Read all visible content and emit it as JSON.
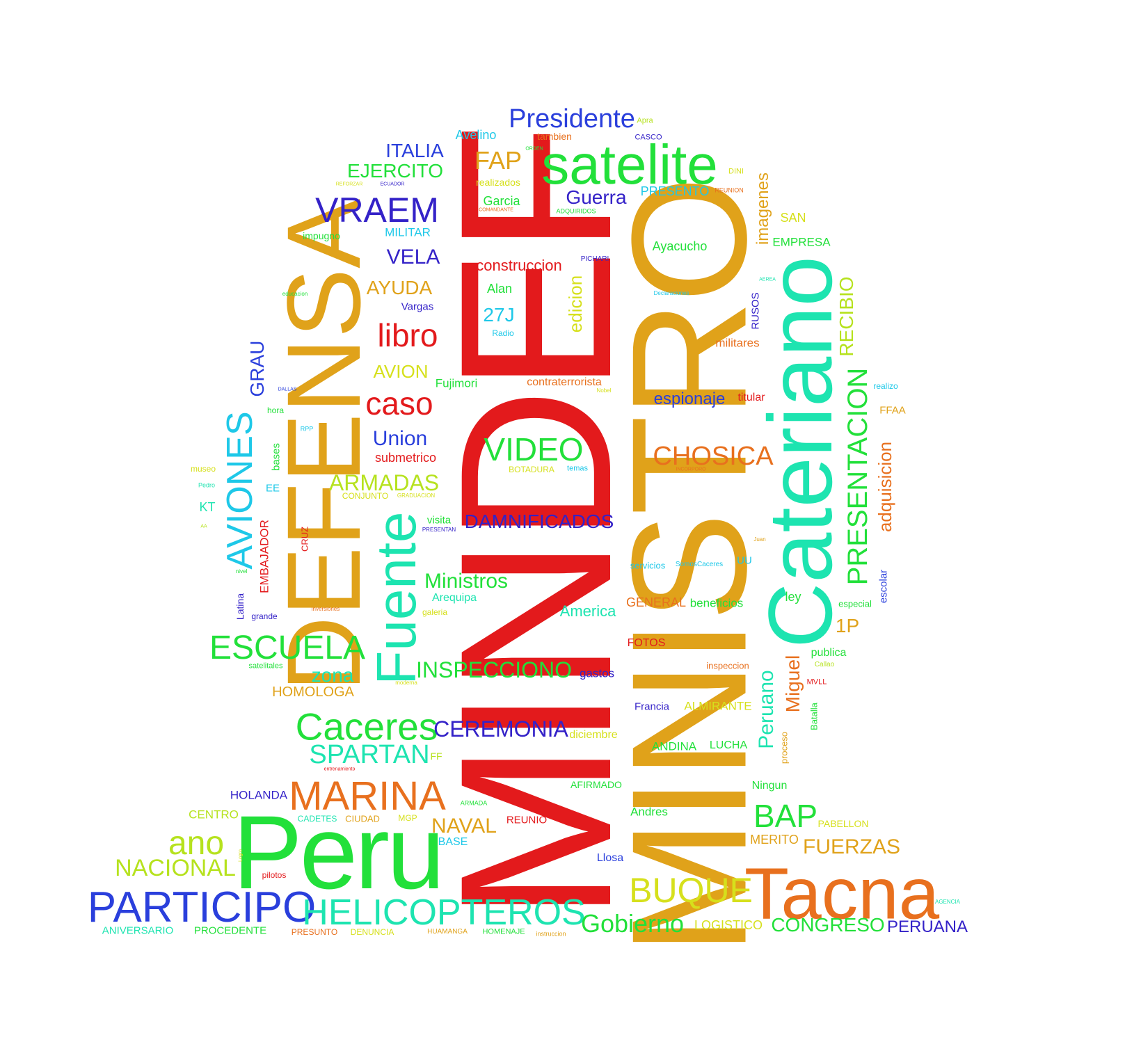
{
  "palette": {
    "red": "#e31a1c",
    "gold": "#e0a21a",
    "teal": "#1de4b0",
    "blue": "#2a3fdc",
    "indigo": "#3422c8",
    "green": "#22e03a",
    "lime": "#b6e21e",
    "orange": "#e8701e",
    "cyan": "#1ec8e8",
    "yellowgreen": "#d6e01c"
  },
  "words": {
    "MINDEF": "MINDEF",
    "MINISTRO": "MINISTRO",
    "DEFENSA": "DEFENSA",
    "Cateriano": "Cateriano",
    "Peru": "Peru",
    "Tacna": "Tacna",
    "satelite": "satelite",
    "Fuente": "Fuente",
    "PARTICIPO": "PARTICIPO",
    "HELICOPTEROS": "HELICOPTEROS",
    "MARINA": "MARINA",
    "Caceres": "Caceres",
    "ESCUELA": "ESCUELA",
    "VRAEM": "VRAEM",
    "Presidente": "Presidente",
    "AVIONES": "AVIONES",
    "BUQUE": "BUQUE",
    "VIDEO": "VIDEO",
    "PRESENTACION": "PRESENTACION",
    "caso": "caso",
    "libro": "libro",
    "ano": "ano",
    "BAP": "BAP",
    "NACIONAL": "NACIONAL",
    "Gobierno": "Gobierno",
    "SPARTAN": "SPARTAN",
    "CEREMONIA": "CEREMONIA",
    "DAMNIFICADOS": "DAMNIFICADOS",
    "CHOSICA": "CHOSICA",
    "Union": "Union",
    "INSPECCIONO": "INSPECCIONO",
    "ARMADAS": "ARMADAS",
    "FUERZAS": "FUERZAS",
    "CONGRESO": "CONGRESO",
    "PERUANA": "PERUANA",
    "NAVAL": "NAVAL",
    "Ministros": "Ministros",
    "ITALIA": "ITALIA",
    "EJERCITO": "EJERCITO",
    "FAP": "FAP",
    "Guerra": "Guerra",
    "VELA": "VELA",
    "AYUDA": "AYUDA",
    "construccion": "construccion",
    "27J": "27J",
    "espionaje": "espionaje",
    "zona": "zona",
    "imagenes": "imagenes",
    "RECIBIO": "RECIBIO",
    "adquisicion": "adquisicion",
    "Peruano": "Peruano",
    "Miguel": "Miguel",
    "GRAU": "GRAU",
    "America": "America",
    "HOMOLOGA": "HOMOLOGA",
    "1P": "1P",
    "edicion": "edicion",
    "Avelino": "Avelino",
    "tambien": "tambien",
    "CASCO": "CASCO",
    "Apra": "Apra",
    "realizados": "realizados",
    "Garcia": "Garcia",
    "PRESENTO": "PRESENTO",
    "DINI": "DINI",
    "REUNION": "REUNION",
    "MILITAR": "MILITAR",
    "impugno": "impugno",
    "SAN": "SAN",
    "EMPRESA": "EMPRESA",
    "Ayacucho": "Ayacucho",
    "PICHARI": "PICHARI",
    "Alan": "Alan",
    "Vargas": "Vargas",
    "Radio": "Radio",
    "RUSOS": "RUSOS",
    "militares": "militares",
    "AVION": "AVION",
    "Fujimori": "Fujimori",
    "contraterrorista": "contraterrorista",
    "titular": "titular",
    "realizo": "realizo",
    "FFAA": "FFAA",
    "hora": "hora",
    "bases": "bases",
    "submetrico": "submetrico",
    "BOTADURA": "BOTADURA",
    "temas": "temas",
    "museo": "museo",
    "Pedro": "Pedro",
    "EE": "EE",
    "KT": "KT",
    "CONJUNTO": "CONJUNTO",
    "GRADUACION": "GRADUACION",
    "visita": "visita",
    "PRESENTAN": "PRESENTAN",
    "EMBAJADOR": "EMBAJADOR",
    "CRUZ": "CRUZ",
    "servicios": "servicios",
    "SomosCaceres": "SomosCaceres",
    "UU": "UU",
    "ley": "ley",
    "escolar": "escolar",
    "especial": "especial",
    "Arequipa": "Arequipa",
    "galeria": "galeria",
    "GENERAL": "GENERAL",
    "beneficios": "beneficios",
    "Latina": "Latina",
    "grande": "grande",
    "inversiones": "inversiones",
    "FOTOS": "FOTOS",
    "publica": "publica",
    "Callao": "Callao",
    "satelitales": "satelitales",
    "gastos": "gastos",
    "inspeccion": "inspeccion",
    "MVLL": "MVLL",
    "Batalla": "Batalla",
    "Francia": "Francia",
    "ALMIRANTE": "ALMIRANTE",
    "diciembre": "diciembre",
    "proceso": "proceso",
    "ANDINA": "ANDINA",
    "LUCHA": "LUCHA",
    "FF": "FF",
    "HOLANDA": "HOLANDA",
    "AFIRMADO": "AFIRMADO",
    "Ningun": "Ningun",
    "CENTRO": "CENTRO",
    "CADETES": "CADETES",
    "CIUDAD": "CIUDAD",
    "MGP": "MGP",
    "ARMADA": "ARMADA",
    "REUNIO": "REUNIO",
    "Andres": "Andres",
    "PABELLON": "PABELLON",
    "MERITO": "MERITO",
    "BASE": "BASE",
    "Llosa": "Llosa",
    "pilotos": "pilotos",
    "ANIVERSARIO": "ANIVERSARIO",
    "PROCEDENTE": "PROCEDENTE",
    "PRESUNTO": "PRESUNTO",
    "DENUNCIA": "DENUNCIA",
    "HUAMANGA": "HUAMANGA",
    "HOMENAJE": "HOMENAJE",
    "instruccion": "instruccion",
    "LOGISTICO": "LOGISTICO",
    "AGENCIA": "AGENCIA",
    "ORDEN": "ORDEN",
    "COMANDANTE": "COMANDANTE",
    "ADQUIRIDOS": "ADQUIRIDOS",
    "ECUADOR": "ECUADOR",
    "REFORZAR": "REFORZAR",
    "educacion": "educacion",
    "Declaraciones": "Declaraciones",
    "AEREA": "AEREA",
    "DALLAS": "DALLAS",
    "RPP": "RPP",
    "Nobel": "Nobel",
    "INCORPORO": "INCORPORO",
    "Juan": "Juan",
    "nivel": "nivel",
    "entrenamiento": "entrenamiento",
    "moderna": "moderna",
    "Logro": "Logro",
    "AA": "AA"
  }
}
